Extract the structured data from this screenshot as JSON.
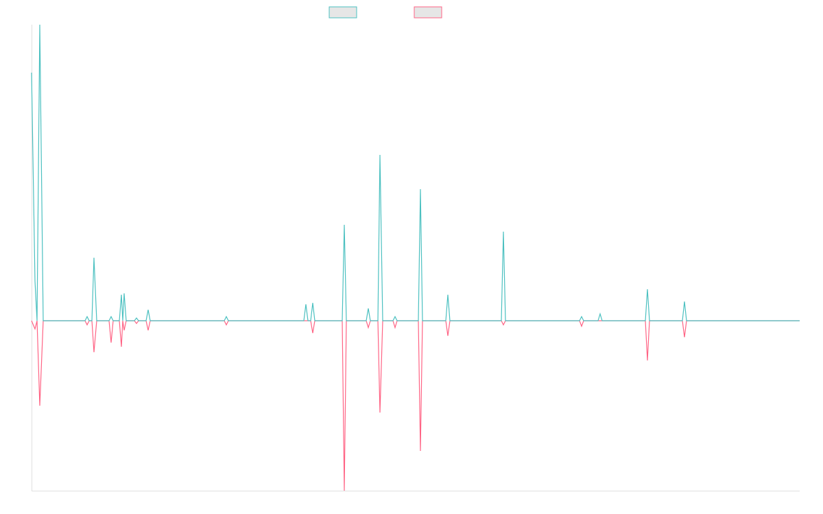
{
  "chart_data": {
    "type": "line",
    "x": [
      0,
      5,
      8,
      12,
      17,
      78,
      81,
      84,
      88,
      91,
      95,
      113,
      116,
      119,
      128,
      131,
      133,
      135,
      138,
      150,
      153,
      156,
      167,
      170,
      173,
      281,
      284,
      287,
      397,
      400,
      403,
      407,
      410,
      413,
      453,
      456,
      459,
      488,
      491,
      494,
      505,
      508,
      512,
      527,
      530,
      533,
      564,
      567,
      570,
      604,
      607,
      610,
      685,
      688,
      691,
      799,
      802,
      805,
      826,
      829,
      832,
      895,
      898,
      901,
      949,
      952,
      955,
      1120
    ],
    "series": [
      {
        "color": "#4bc0c0",
        "values": [
          362,
          58,
          0,
          432,
          0,
          0,
          6,
          0,
          0,
          92,
          0,
          0,
          6,
          0,
          0,
          38,
          0,
          40,
          0,
          0,
          4,
          0,
          0,
          16,
          0,
          0,
          6,
          0,
          0,
          24,
          0,
          0,
          26,
          0,
          0,
          140,
          0,
          0,
          18,
          0,
          0,
          242,
          0,
          0,
          6,
          0,
          0,
          192,
          0,
          0,
          38,
          0,
          0,
          130,
          0,
          0,
          6,
          0,
          0,
          10,
          0,
          0,
          46,
          0,
          0,
          28,
          0,
          0
        ]
      },
      {
        "color": "#ff6384",
        "values": [
          0,
          -12,
          0,
          -124,
          0,
          0,
          -6,
          0,
          0,
          -46,
          0,
          0,
          -32,
          0,
          0,
          -38,
          0,
          -14,
          0,
          0,
          -4,
          0,
          0,
          -14,
          0,
          0,
          -6,
          0,
          0,
          0,
          0,
          0,
          -18,
          0,
          0,
          -248,
          0,
          0,
          -10,
          0,
          0,
          -134,
          0,
          0,
          -10,
          0,
          0,
          -190,
          0,
          0,
          -22,
          0,
          0,
          -6,
          0,
          0,
          -8,
          0,
          0,
          0,
          0,
          0,
          -58,
          0,
          0,
          -24,
          0,
          0
        ]
      }
    ],
    "xlim": [
      0,
      1120
    ],
    "ylim": [
      -248,
      432
    ]
  }
}
